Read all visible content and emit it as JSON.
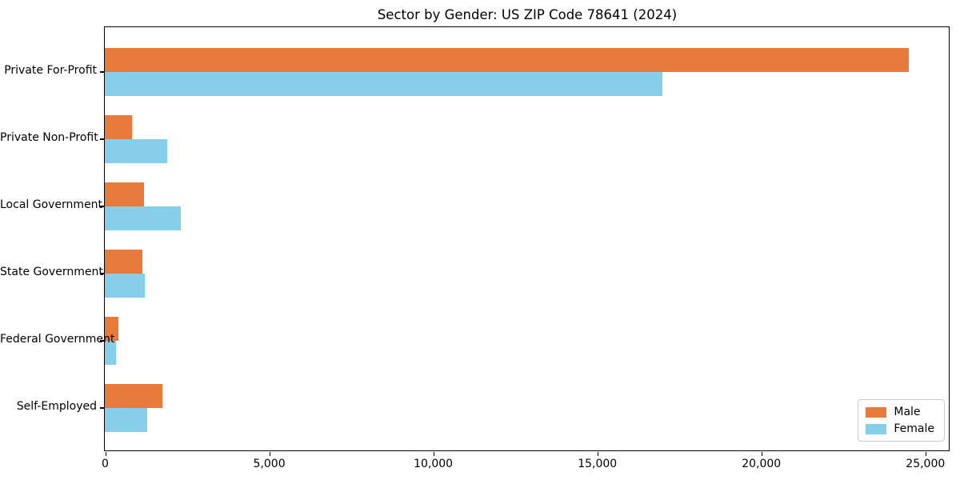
{
  "chart_data": {
    "type": "bar",
    "orientation": "horizontal",
    "title": "Sector by Gender: US ZIP Code 78641 (2024)",
    "categories": [
      "Private For-Profit",
      "Private Non-Profit",
      "Local Government",
      "State Government",
      "Federal Government",
      "Self-Employed"
    ],
    "series": [
      {
        "name": "Male",
        "color": "#e87a3c",
        "values": [
          24500,
          820,
          1200,
          1150,
          410,
          1760
        ]
      },
      {
        "name": "Female",
        "color": "#87ceeb",
        "values": [
          17000,
          1890,
          2310,
          1220,
          330,
          1290
        ]
      }
    ],
    "xlabel": "",
    "ylabel": "",
    "xlim": [
      0,
      25725
    ],
    "x_ticks": [
      {
        "value": 0,
        "label": "0"
      },
      {
        "value": 5000,
        "label": "5,000"
      },
      {
        "value": 10000,
        "label": "10,000"
      },
      {
        "value": 15000,
        "label": "15,000"
      },
      {
        "value": 20000,
        "label": "20,000"
      },
      {
        "value": 25000,
        "label": "25,000"
      }
    ],
    "grid": false,
    "legend_position": "lower right",
    "colors": {
      "male": "#e87a3c",
      "female": "#87ceeb",
      "spine": "#000000",
      "background": "#ffffff"
    }
  }
}
